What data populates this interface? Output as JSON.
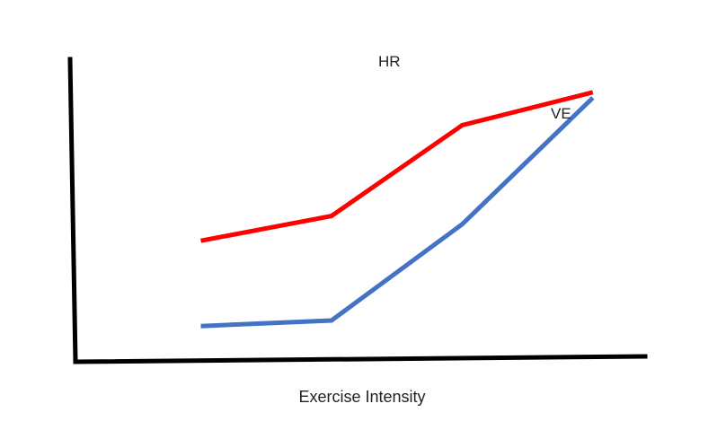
{
  "chart_data": {
    "type": "line",
    "title": "",
    "xlabel": "Exercise Intensity",
    "ylabel": "",
    "grid": false,
    "legend": "none",
    "x": [
      1,
      2,
      3,
      4
    ],
    "series": [
      {
        "name": "HR",
        "color": "#ff0000",
        "x": [
          1,
          2,
          3,
          4
        ],
        "values": [
          4.4,
          5.3,
          8.6,
          9.8
        ]
      },
      {
        "name": "VE",
        "color": "#4472c4",
        "x": [
          1,
          2,
          3,
          4
        ],
        "values": [
          1.3,
          1.5,
          5.0,
          9.6
        ]
      }
    ],
    "xlim": [
      0,
      4.4
    ],
    "ylim": [
      0,
      11
    ],
    "axis_color": "#000000"
  }
}
